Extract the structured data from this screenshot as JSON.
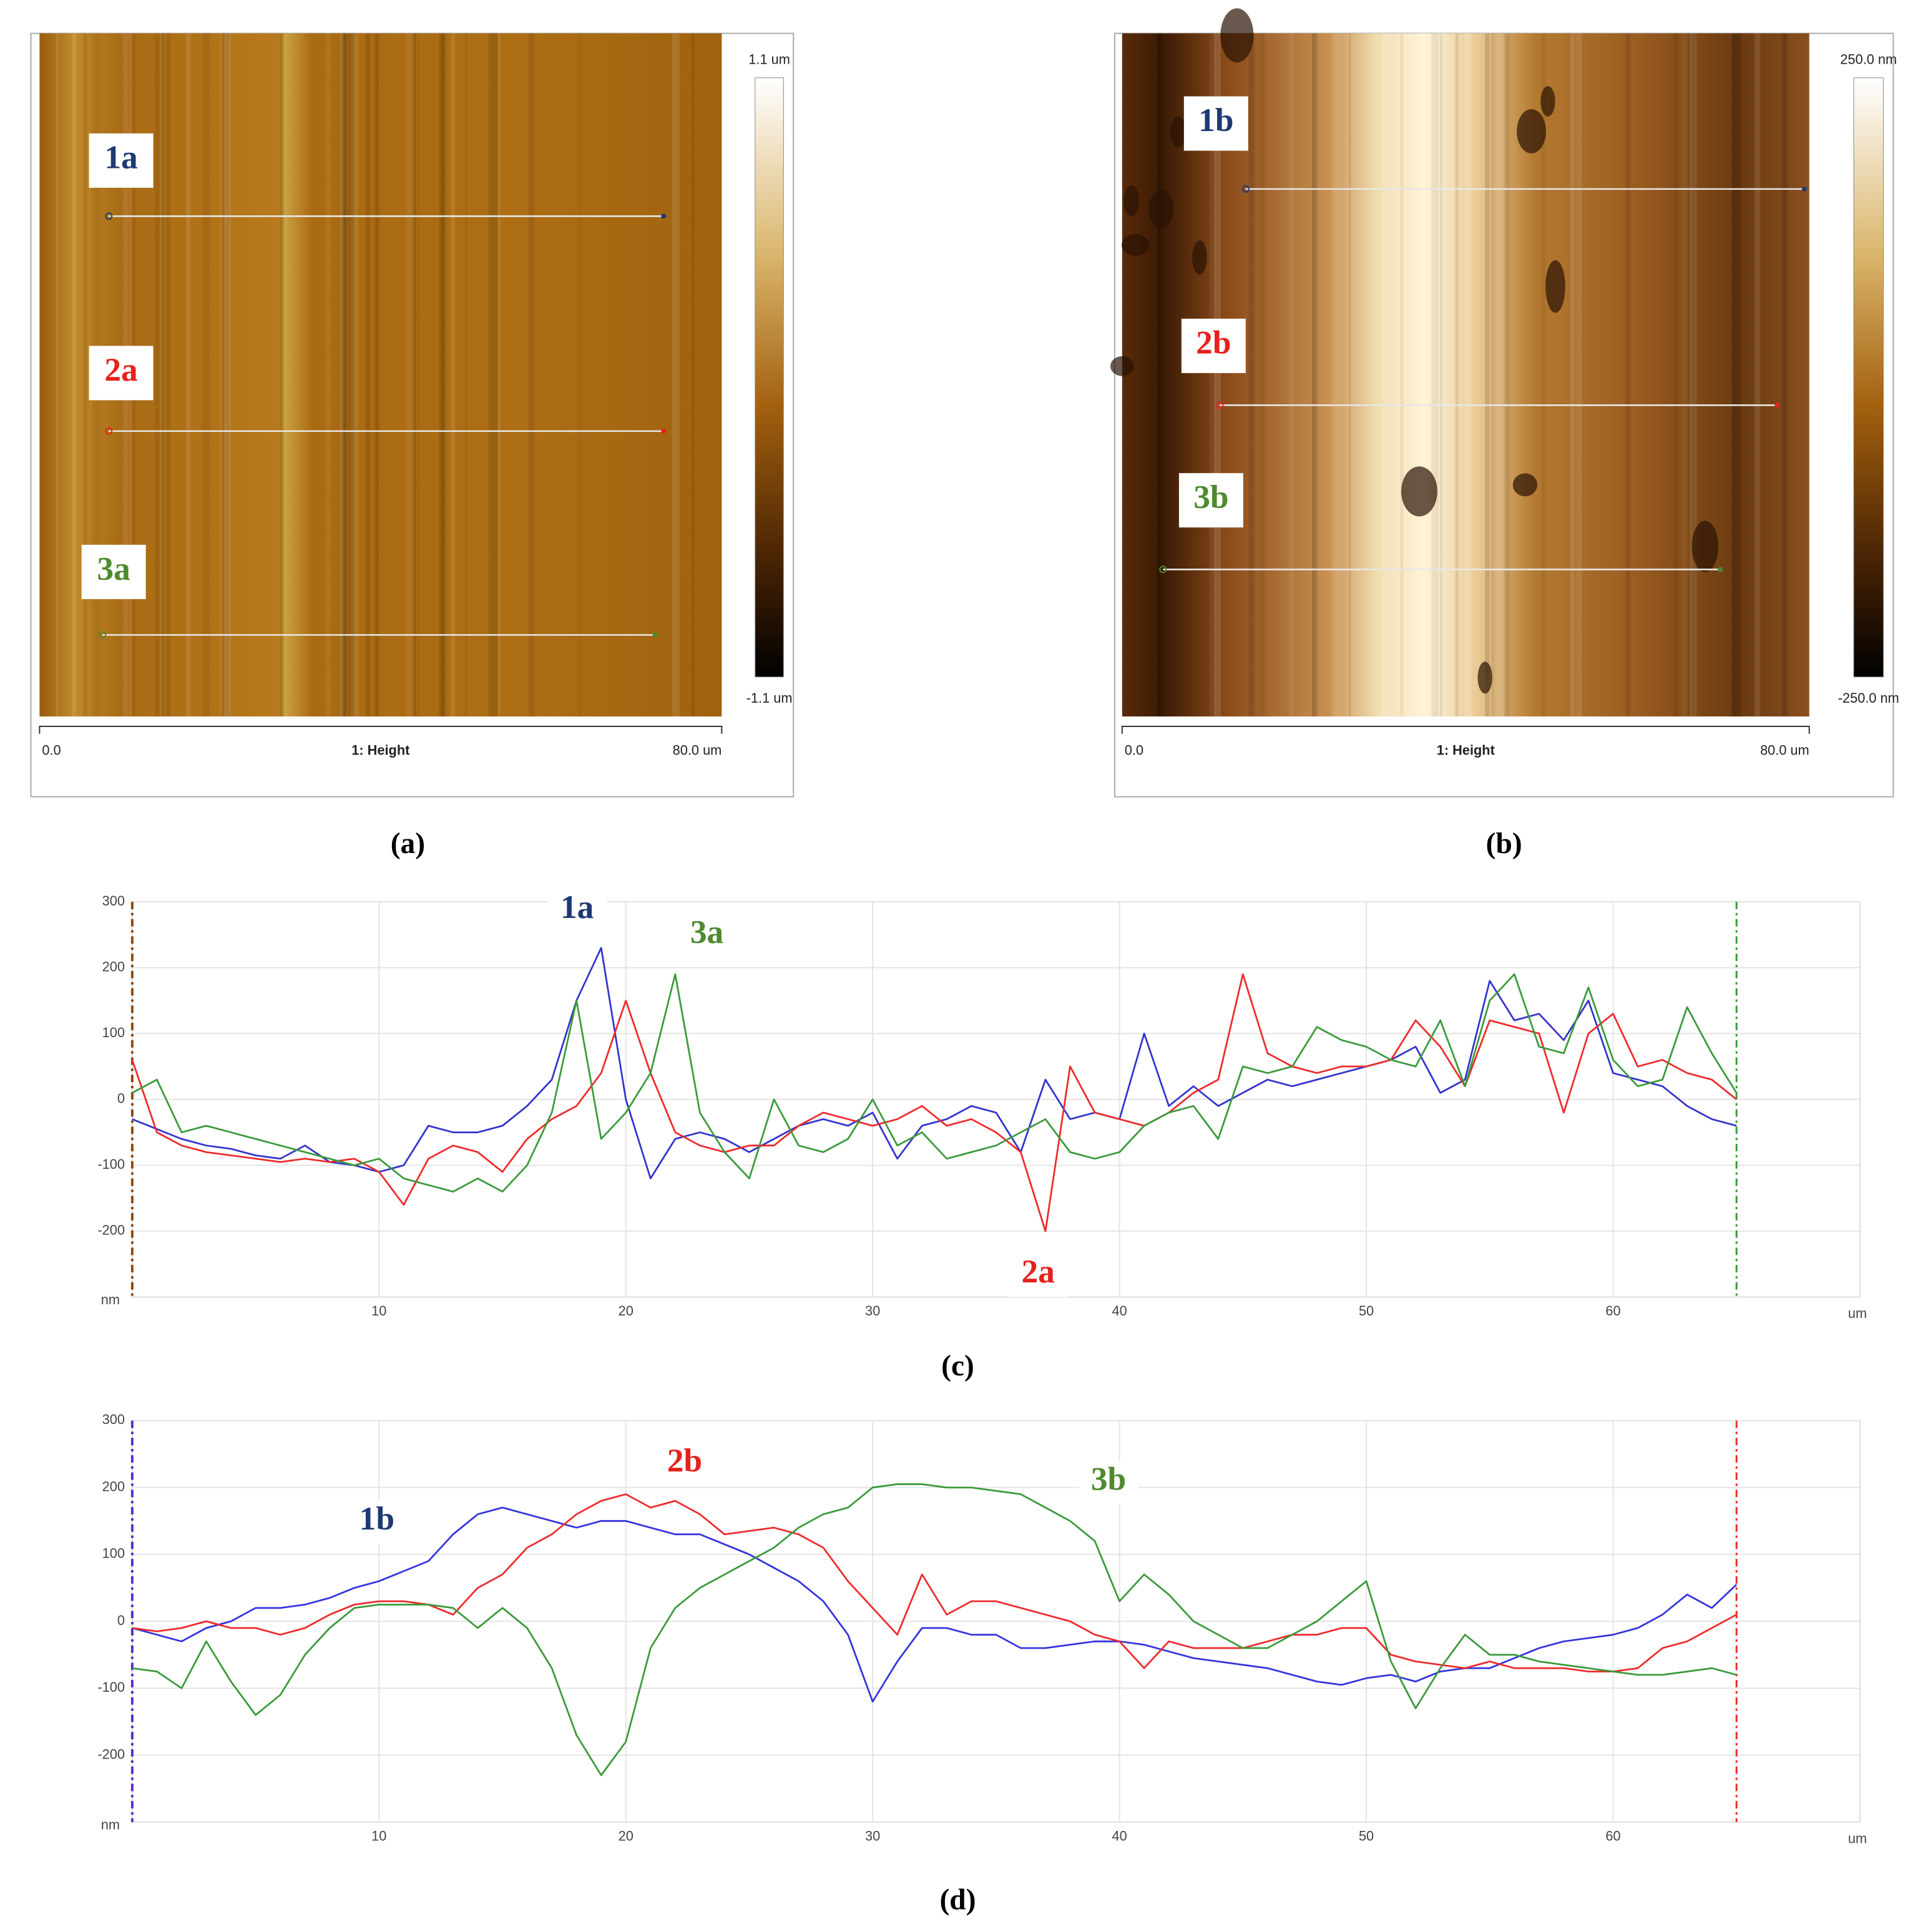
{
  "panels": [
    {
      "caption": "(a)",
      "scale_top": "1.1 um",
      "scale_bottom": "-1.1 um",
      "axis_start": "0.0",
      "axis_title": "1: Height",
      "axis_end": "80.0 um",
      "profiles": [
        {
          "label": "1a",
          "color": "#1f3a73"
        },
        {
          "label": "2a",
          "color": "#e8201c"
        },
        {
          "label": "3a",
          "color": "#4e8a2e"
        }
      ]
    },
    {
      "caption": "(b)",
      "scale_top": "250.0 nm",
      "scale_bottom": "-250.0 nm",
      "axis_start": "0.0",
      "axis_title": "1: Height",
      "axis_end": "80.0 um",
      "profiles": [
        {
          "label": "1b",
          "color": "#1f3a73"
        },
        {
          "label": "2b",
          "color": "#e8201c"
        },
        {
          "label": "3b",
          "color": "#4e8a2e"
        }
      ]
    }
  ],
  "chart_data": [
    {
      "type": "line",
      "caption": "(c)",
      "y_label": "nm",
      "x_label": "um",
      "grid": true,
      "xlim": [
        0,
        70
      ],
      "xticks": [
        10,
        20,
        30,
        40,
        50,
        60
      ],
      "ylim": [
        -300,
        300
      ],
      "yticks": [
        -200,
        -100,
        0,
        100,
        200,
        300
      ],
      "x": [
        0,
        1,
        2,
        3,
        4,
        5,
        6,
        7,
        8,
        9,
        10,
        11,
        12,
        13,
        14,
        15,
        16,
        17,
        18,
        19,
        20,
        21,
        22,
        23,
        24,
        25,
        26,
        27,
        28,
        29,
        30,
        31,
        32,
        33,
        34,
        35,
        36,
        37,
        38,
        39,
        40,
        41,
        42,
        43,
        44,
        45,
        46,
        47,
        48,
        49,
        50,
        51,
        52,
        53,
        54,
        55,
        56,
        57,
        58,
        59,
        60,
        61,
        62,
        63,
        64,
        65
      ],
      "series": [
        {
          "name": "1a",
          "color": "#3333cc",
          "values": [
            -30,
            -45,
            -60,
            -70,
            -75,
            -85,
            -90,
            -70,
            -95,
            -100,
            -110,
            -100,
            -40,
            -50,
            -50,
            -40,
            -10,
            30,
            150,
            230,
            0,
            -120,
            -60,
            -50,
            -60,
            -80,
            -60,
            -40,
            -30,
            -40,
            -20,
            -90,
            -40,
            -30,
            -10,
            -20,
            -80,
            30,
            -30,
            -20,
            -30,
            100,
            -10,
            20,
            -10,
            10,
            30,
            20,
            30,
            40,
            50,
            60,
            80,
            10,
            30,
            180,
            120,
            130,
            90,
            150,
            40,
            30,
            20,
            -10,
            -30,
            -40
          ]
        },
        {
          "name": "2a",
          "color": "#ee2a2a",
          "values": [
            60,
            -50,
            -70,
            -80,
            -85,
            -90,
            -95,
            -90,
            -95,
            -90,
            -110,
            -160,
            -90,
            -70,
            -80,
            -110,
            -60,
            -30,
            -10,
            40,
            150,
            40,
            -50,
            -70,
            -80,
            -70,
            -70,
            -40,
            -20,
            -30,
            -40,
            -30,
            -10,
            -40,
            -30,
            -50,
            -80,
            -200,
            50,
            -20,
            -30,
            -40,
            -20,
            10,
            30,
            190,
            70,
            50,
            40,
            50,
            50,
            60,
            120,
            80,
            20,
            120,
            110,
            100,
            -20,
            100,
            130,
            50,
            60,
            40,
            30,
            0
          ]
        },
        {
          "name": "3a",
          "color": "#3a9a3a",
          "values": [
            10,
            30,
            -50,
            -40,
            -50,
            -60,
            -70,
            -80,
            -90,
            -100,
            -90,
            -120,
            -130,
            -140,
            -120,
            -140,
            -100,
            -20,
            150,
            -60,
            -20,
            40,
            190,
            -20,
            -80,
            -120,
            0,
            -70,
            -80,
            -60,
            0,
            -70,
            -50,
            -90,
            -80,
            -70,
            -50,
            -30,
            -80,
            -90,
            -80,
            -40,
            -20,
            -10,
            -60,
            50,
            40,
            50,
            110,
            90,
            80,
            60,
            50,
            120,
            20,
            150,
            190,
            80,
            70,
            170,
            60,
            20,
            30,
            140,
            70,
            10
          ]
        }
      ],
      "annotations": [
        {
          "text": "1a",
          "color": "#1f3a73"
        },
        {
          "text": "3a",
          "color": "#4e8a2e"
        },
        {
          "text": "2a",
          "color": "#e8201c"
        }
      ]
    },
    {
      "type": "line",
      "caption": "(d)",
      "y_label": "nm",
      "x_label": "um",
      "grid": true,
      "xlim": [
        0,
        70
      ],
      "xticks": [
        10,
        20,
        30,
        40,
        50,
        60
      ],
      "ylim": [
        -300,
        300
      ],
      "yticks": [
        -200,
        -100,
        0,
        100,
        200,
        300
      ],
      "x": [
        0,
        1,
        2,
        3,
        4,
        5,
        6,
        7,
        8,
        9,
        10,
        11,
        12,
        13,
        14,
        15,
        16,
        17,
        18,
        19,
        20,
        21,
        22,
        23,
        24,
        25,
        26,
        27,
        28,
        29,
        30,
        31,
        32,
        33,
        34,
        35,
        36,
        37,
        38,
        39,
        40,
        41,
        42,
        43,
        44,
        45,
        46,
        47,
        48,
        49,
        50,
        51,
        52,
        53,
        54,
        55,
        56,
        57,
        58,
        59,
        60,
        61,
        62,
        63,
        64,
        65
      ],
      "series": [
        {
          "name": "1b",
          "color": "#3333dd",
          "values": [
            -10,
            -20,
            -30,
            -10,
            0,
            20,
            20,
            25,
            35,
            50,
            60,
            75,
            90,
            130,
            160,
            170,
            160,
            150,
            140,
            150,
            150,
            140,
            130,
            130,
            115,
            100,
            80,
            60,
            30,
            -20,
            -120,
            -60,
            -10,
            -10,
            -20,
            -20,
            -40,
            -40,
            -35,
            -30,
            -30,
            -35,
            -45,
            -55,
            -60,
            -65,
            -70,
            -80,
            -90,
            -95,
            -85,
            -80,
            -90,
            -75,
            -70,
            -70,
            -55,
            -40,
            -30,
            -25,
            -20,
            -10,
            10,
            40,
            20,
            55
          ]
        },
        {
          "name": "2b",
          "color": "#ee2a2a",
          "values": [
            -10,
            -15,
            -10,
            0,
            -10,
            -10,
            -20,
            -10,
            10,
            25,
            30,
            30,
            25,
            10,
            50,
            70,
            110,
            130,
            160,
            180,
            190,
            170,
            180,
            160,
            130,
            135,
            140,
            130,
            110,
            60,
            20,
            -20,
            70,
            10,
            30,
            30,
            20,
            10,
            0,
            -20,
            -30,
            -70,
            -30,
            -40,
            -40,
            -40,
            -30,
            -20,
            -20,
            -10,
            -10,
            -50,
            -60,
            -65,
            -70,
            -60,
            -70,
            -70,
            -70,
            -75,
            -75,
            -70,
            -40,
            -30,
            -10,
            10
          ]
        },
        {
          "name": "3b",
          "color": "#3a9a3a",
          "values": [
            -70,
            -75,
            -100,
            -30,
            -90,
            -140,
            -110,
            -50,
            -10,
            20,
            25,
            25,
            25,
            20,
            -10,
            20,
            -10,
            -70,
            -170,
            -230,
            -180,
            -40,
            20,
            50,
            70,
            90,
            110,
            140,
            160,
            170,
            200,
            205,
            205,
            200,
            200,
            195,
            190,
            170,
            150,
            120,
            30,
            70,
            40,
            0,
            -20,
            -40,
            -40,
            -20,
            0,
            30,
            60,
            -60,
            -130,
            -70,
            -20,
            -50,
            -50,
            -60,
            -65,
            -70,
            -75,
            -80,
            -80,
            -75,
            -70,
            -80
          ]
        }
      ],
      "annotations": [
        {
          "text": "1b",
          "color": "#1f3a73"
        },
        {
          "text": "2b",
          "color": "#e8201c"
        },
        {
          "text": "3b",
          "color": "#4e8a2e"
        }
      ]
    }
  ]
}
